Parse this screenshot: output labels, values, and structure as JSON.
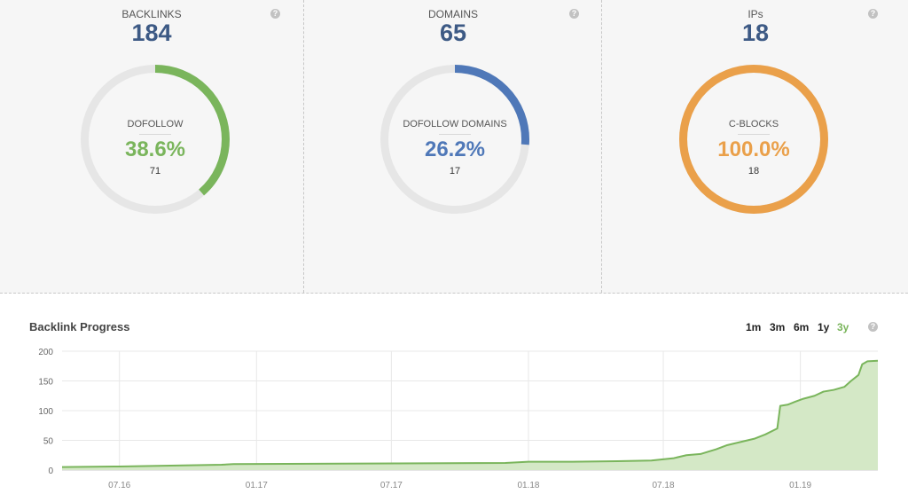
{
  "stats": {
    "backlinks": {
      "title": "BACKLINKS",
      "value": "184",
      "sub_label": "DOFOLLOW",
      "percent": "38.6%",
      "count": "71",
      "fraction": 0.386,
      "color": "#7ab55c"
    },
    "domains": {
      "title": "DOMAINS",
      "value": "65",
      "sub_label": "DOFOLLOW DOMAINS",
      "percent": "26.2%",
      "count": "17",
      "fraction": 0.262,
      "color": "#4f78b8"
    },
    "ips": {
      "title": "IPs",
      "value": "18",
      "sub_label": "C-BLOCKS",
      "percent": "100.0%",
      "count": "18",
      "fraction": 1.0,
      "color": "#eaa04a"
    },
    "help_icon": "question-circle-icon",
    "help_glyph": "?",
    "track_color": "#e6e6e6"
  },
  "progress": {
    "title": "Backlink Progress",
    "ranges": [
      "1m",
      "3m",
      "6m",
      "1y",
      "3y"
    ],
    "active_range": "3y"
  },
  "chart_data": {
    "type": "area",
    "title": "",
    "xlabel": "",
    "ylabel": "",
    "ylim": [
      0,
      200
    ],
    "yticks": [
      0,
      50,
      100,
      150,
      200
    ],
    "xticks": [
      "07.16",
      "01.17",
      "07.17",
      "01.18",
      "07.18",
      "01.19"
    ],
    "xlim": [
      "2016-04-15",
      "2019-04-15"
    ],
    "grid": true,
    "color": "#7ab55c",
    "fill": "#d4e8c6",
    "series": [
      {
        "points": [
          [
            "2016-04-15",
            5
          ],
          [
            "2016-07-01",
            6
          ],
          [
            "2016-11-15",
            9
          ],
          [
            "2016-12-01",
            10
          ],
          [
            "2017-06-01",
            11
          ],
          [
            "2017-12-01",
            12
          ],
          [
            "2018-01-01",
            14
          ],
          [
            "2018-03-01",
            14
          ],
          [
            "2018-05-01",
            15
          ],
          [
            "2018-06-15",
            16
          ],
          [
            "2018-07-15",
            20
          ],
          [
            "2018-08-01",
            25
          ],
          [
            "2018-08-20",
            27
          ],
          [
            "2018-09-10",
            35
          ],
          [
            "2018-09-25",
            42
          ],
          [
            "2018-10-15",
            48
          ],
          [
            "2018-11-01",
            53
          ],
          [
            "2018-11-15",
            60
          ],
          [
            "2018-12-01",
            70
          ],
          [
            "2018-12-05",
            108
          ],
          [
            "2018-12-15",
            110
          ],
          [
            "2018-12-25",
            115
          ],
          [
            "2019-01-05",
            120
          ],
          [
            "2019-01-20",
            125
          ],
          [
            "2019-02-01",
            132
          ],
          [
            "2019-02-15",
            135
          ],
          [
            "2019-03-01",
            140
          ],
          [
            "2019-03-10",
            150
          ],
          [
            "2019-03-20",
            160
          ],
          [
            "2019-03-25",
            178
          ],
          [
            "2019-04-01",
            183
          ],
          [
            "2019-04-15",
            184
          ]
        ]
      }
    ]
  }
}
